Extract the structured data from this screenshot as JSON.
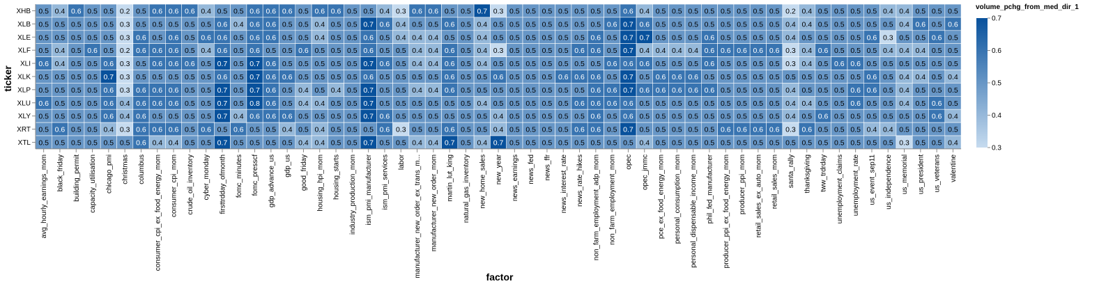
{
  "chart_data": {
    "type": "heatmap",
    "xlabel": "factor",
    "ylabel": "ticker",
    "legend": {
      "title": "volume_pchg_from_med_dir_1",
      "ticks": [
        "0.7",
        "0.6",
        "0.5",
        "0.4",
        "0.3"
      ],
      "range": [
        0.3,
        0.7
      ],
      "placement": "right"
    },
    "colors": {
      "low": "#c6dbef",
      "high": "#08519c"
    },
    "y": [
      "XHB",
      "XLB",
      "XLE",
      "XLF",
      "XLI",
      "XLK",
      "XLP",
      "XLU",
      "XLY",
      "XRT",
      "XTL"
    ],
    "x": [
      "avg_hourly_earnings_mom",
      "black_friday",
      "building_permit",
      "capacity_utilisation",
      "chicago_pmi",
      "christmas",
      "columbus",
      "consumer_cpi_ex_food_energy_mom",
      "consumer_cpi_mom",
      "crude_oil_inventory",
      "cyber_monday",
      "firsttrdday_ofmonth",
      "fomc_minutes",
      "fomc_presscf",
      "gdp_advance_us",
      "gdp_us",
      "good_friday",
      "housing_hpi_mom",
      "housing_starts",
      "industry_production_mom",
      "ism_pmi_manufacturer",
      "ism_pmi_services",
      "labor",
      "manufacturer_new_order_ex_trans_m...",
      "manufacturer_new_order_mom",
      "martin_lut_king",
      "natural_gas_inventory",
      "new_home_sales",
      "new_year",
      "news_earnings",
      "news_fed",
      "news_ffr",
      "news_interest_rate",
      "news_rate_hikes",
      "non_farm_employment_adp_mom",
      "non_farm_employment_mom",
      "opec",
      "opec_jmmc",
      "pce_ex_food_energy_mom",
      "personal_consumption_mom",
      "personal_dispensable_income_mom",
      "phil_fed_manufacturer",
      "producer_ppi_ex_food_energy_mom",
      "producer_ppi_mom",
      "retail_sales_ex_auto_mom",
      "retail_sales_mom",
      "santa_rally",
      "thanksgiving",
      "tww_trdrday",
      "unemployment_claims",
      "unemployment_rate",
      "us_event_sep11",
      "us_independence",
      "us_memorial",
      "us_president",
      "us_veterans",
      "valentine"
    ],
    "values": [
      [
        0.5,
        0.4,
        0.6,
        0.5,
        0.5,
        0.2,
        0.5,
        0.6,
        0.6,
        0.6,
        0.4,
        0.5,
        0.5,
        0.6,
        0.6,
        0.6,
        0.5,
        0.6,
        0.6,
        0.5,
        0.5,
        0.4,
        0.3,
        0.6,
        0.6,
        0.5,
        0.5,
        0.7,
        0.3,
        0.5,
        0.5,
        0.5,
        0.5,
        0.5,
        0.5,
        0.5,
        0.6,
        0.4,
        0.5,
        0.5,
        0.5,
        0.5,
        0.5,
        0.5,
        0.5,
        0.5,
        0.2,
        0.4,
        0.5,
        0.5,
        0.5,
        0.5,
        0.4,
        0.4,
        0.5,
        0.5,
        0.5
      ],
      [
        0.5,
        0.5,
        0.5,
        0.5,
        0.5,
        0.3,
        0.5,
        0.5,
        0.5,
        0.5,
        0.5,
        0.6,
        0.4,
        0.6,
        0.6,
        0.5,
        0.5,
        0.4,
        0.5,
        0.5,
        0.7,
        0.6,
        0.4,
        0.5,
        0.5,
        0.6,
        0.5,
        0.4,
        0.5,
        0.5,
        0.5,
        0.5,
        0.5,
        0.5,
        0.5,
        0.6,
        0.7,
        0.6,
        0.5,
        0.5,
        0.5,
        0.5,
        0.5,
        0.5,
        0.5,
        0.5,
        0.4,
        0.4,
        0.5,
        0.5,
        0.5,
        0.5,
        0.5,
        0.4,
        0.6,
        0.5,
        0.6
      ],
      [
        0.5,
        0.5,
        0.5,
        0.5,
        0.5,
        0.3,
        0.6,
        0.5,
        0.6,
        0.5,
        0.6,
        0.6,
        0.5,
        0.6,
        0.6,
        0.5,
        0.5,
        0.4,
        0.5,
        0.5,
        0.6,
        0.5,
        0.4,
        0.4,
        0.4,
        0.5,
        0.5,
        0.4,
        0.5,
        0.5,
        0.5,
        0.5,
        0.5,
        0.5,
        0.6,
        0.5,
        0.7,
        0.7,
        0.5,
        0.5,
        0.5,
        0.6,
        0.5,
        0.5,
        0.5,
        0.5,
        0.4,
        0.5,
        0.5,
        0.5,
        0.5,
        0.6,
        0.3,
        0.5,
        0.5,
        0.6,
        0.5
      ],
      [
        0.5,
        0.4,
        0.5,
        0.6,
        0.5,
        0.2,
        0.6,
        0.6,
        0.6,
        0.5,
        0.4,
        0.6,
        0.5,
        0.6,
        0.5,
        0.5,
        0.6,
        0.5,
        0.5,
        0.5,
        0.6,
        0.5,
        0.5,
        0.4,
        0.4,
        0.6,
        0.5,
        0.4,
        0.3,
        0.5,
        0.5,
        0.5,
        0.5,
        0.6,
        0.6,
        0.5,
        0.7,
        0.4,
        0.4,
        0.4,
        0.4,
        0.6,
        0.6,
        0.6,
        0.6,
        0.6,
        0.3,
        0.4,
        0.6,
        0.5,
        0.5,
        0.5,
        0.4,
        0.4,
        0.4,
        0.5,
        0.5
      ],
      [
        0.6,
        0.4,
        0.5,
        0.5,
        0.6,
        0.3,
        0.5,
        0.6,
        0.6,
        0.6,
        0.5,
        0.7,
        0.5,
        0.7,
        0.6,
        0.5,
        0.5,
        0.5,
        0.5,
        0.5,
        0.7,
        0.6,
        0.5,
        0.4,
        0.4,
        0.6,
        0.5,
        0.4,
        0.5,
        0.5,
        0.5,
        0.5,
        0.5,
        0.5,
        0.5,
        0.6,
        0.6,
        0.6,
        0.5,
        0.5,
        0.5,
        0.6,
        0.5,
        0.5,
        0.5,
        0.5,
        0.3,
        0.4,
        0.5,
        0.6,
        0.6,
        0.5,
        0.5,
        0.5,
        0.5,
        0.5,
        0.5
      ],
      [
        0.5,
        0.5,
        0.5,
        0.5,
        0.7,
        0.3,
        0.5,
        0.5,
        0.5,
        0.5,
        0.5,
        0.6,
        0.5,
        0.7,
        0.6,
        0.6,
        0.5,
        0.5,
        0.5,
        0.5,
        0.6,
        0.5,
        0.5,
        0.5,
        0.5,
        0.6,
        0.5,
        0.5,
        0.6,
        0.5,
        0.5,
        0.5,
        0.6,
        0.6,
        0.6,
        0.5,
        0.7,
        0.5,
        0.6,
        0.6,
        0.6,
        0.5,
        0.5,
        0.5,
        0.5,
        0.5,
        0.5,
        0.5,
        0.5,
        0.5,
        0.5,
        0.6,
        0.5,
        0.4,
        0.4,
        0.5,
        0.4
      ],
      [
        0.5,
        0.5,
        0.5,
        0.5,
        0.6,
        0.3,
        0.6,
        0.6,
        0.6,
        0.5,
        0.5,
        0.7,
        0.5,
        0.7,
        0.6,
        0.5,
        0.4,
        0.5,
        0.4,
        0.5,
        0.7,
        0.5,
        0.5,
        0.4,
        0.4,
        0.6,
        0.5,
        0.5,
        0.5,
        0.5,
        0.5,
        0.5,
        0.5,
        0.5,
        0.6,
        0.6,
        0.7,
        0.6,
        0.6,
        0.6,
        0.6,
        0.6,
        0.5,
        0.5,
        0.5,
        0.5,
        0.4,
        0.5,
        0.5,
        0.5,
        0.6,
        0.6,
        0.5,
        0.4,
        0.5,
        0.5,
        0.5
      ],
      [
        0.6,
        0.5,
        0.5,
        0.5,
        0.6,
        0.4,
        0.6,
        0.6,
        0.6,
        0.5,
        0.5,
        0.7,
        0.5,
        0.8,
        0.6,
        0.5,
        0.4,
        0.4,
        0.5,
        0.5,
        0.7,
        0.5,
        0.5,
        0.5,
        0.5,
        0.5,
        0.5,
        0.4,
        0.5,
        0.5,
        0.5,
        0.5,
        0.5,
        0.6,
        0.6,
        0.6,
        0.6,
        0.5,
        0.5,
        0.5,
        0.5,
        0.5,
        0.5,
        0.5,
        0.5,
        0.5,
        0.4,
        0.4,
        0.5,
        0.5,
        0.6,
        0.5,
        0.5,
        0.4,
        0.5,
        0.6,
        0.5
      ],
      [
        0.5,
        0.5,
        0.5,
        0.5,
        0.6,
        0.4,
        0.6,
        0.5,
        0.5,
        0.5,
        0.5,
        0.7,
        0.4,
        0.6,
        0.6,
        0.6,
        0.5,
        0.5,
        0.5,
        0.5,
        0.7,
        0.6,
        0.5,
        0.5,
        0.5,
        0.5,
        0.5,
        0.5,
        0.4,
        0.5,
        0.5,
        0.5,
        0.5,
        0.5,
        0.6,
        0.5,
        0.6,
        0.5,
        0.5,
        0.5,
        0.5,
        0.5,
        0.5,
        0.5,
        0.5,
        0.5,
        0.4,
        0.5,
        0.6,
        0.5,
        0.5,
        0.5,
        0.5,
        0.5,
        0.5,
        0.6,
        0.4
      ],
      [
        0.5,
        0.6,
        0.5,
        0.5,
        0.4,
        0.3,
        0.6,
        0.6,
        0.6,
        0.5,
        0.6,
        0.5,
        0.6,
        0.5,
        0.5,
        0.4,
        0.5,
        0.4,
        0.5,
        0.5,
        0.5,
        0.6,
        0.3,
        0.5,
        0.5,
        0.6,
        0.5,
        0.5,
        0.4,
        0.5,
        0.5,
        0.5,
        0.5,
        0.6,
        0.6,
        0.5,
        0.7,
        0.5,
        0.5,
        0.5,
        0.5,
        0.5,
        0.6,
        0.6,
        0.6,
        0.6,
        0.3,
        0.6,
        0.5,
        0.5,
        0.5,
        0.4,
        0.4,
        0.5,
        0.5,
        0.5,
        0.5
      ],
      [
        0.5,
        0.5,
        0.5,
        0.5,
        0.5,
        0.5,
        0.6,
        0.4,
        0.4,
        0.5,
        0.5,
        0.7,
        0.5,
        0.5,
        0.5,
        0.5,
        0.4,
        0.4,
        0.5,
        0.5,
        0.7,
        0.5,
        0.5,
        0.4,
        0.4,
        0.7,
        0.5,
        0.4,
        0.7,
        0.5,
        0.5,
        0.5,
        0.5,
        0.5,
        0.5,
        0.5,
        0.5,
        0.4,
        0.5,
        0.5,
        0.5,
        0.5,
        0.5,
        0.5,
        0.5,
        0.5,
        0.5,
        0.5,
        0.5,
        0.5,
        0.5,
        0.5,
        0.5,
        0.3,
        0.5,
        0.5,
        0.4
      ]
    ]
  }
}
